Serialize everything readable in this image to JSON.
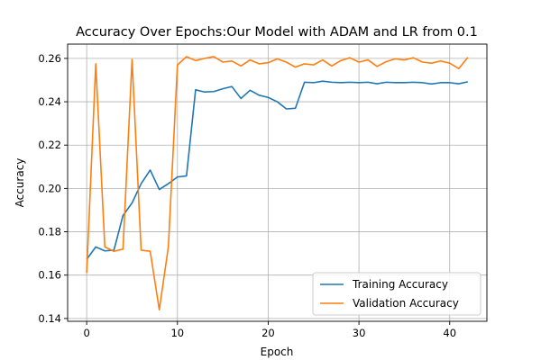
{
  "chart_data": {
    "type": "line",
    "title": "Accuracy Over Epochs:Our Model with ADAM and LR from 0.1",
    "xlabel": "Epoch",
    "ylabel": "Accuracy",
    "xlim": [
      -2.1,
      44.1
    ],
    "ylim": [
      0.1387,
      0.2666
    ],
    "xticks": [
      0,
      10,
      20,
      30,
      40
    ],
    "yticks": [
      0.14,
      0.16,
      0.18,
      0.2,
      0.22,
      0.24,
      0.26
    ],
    "ytick_labels": [
      "0.14",
      "0.16",
      "0.18",
      "0.20",
      "0.22",
      "0.24",
      "0.26"
    ],
    "grid": true,
    "legend_position": "lower-right",
    "x": [
      0,
      1,
      2,
      3,
      4,
      5,
      6,
      7,
      8,
      9,
      10,
      11,
      12,
      13,
      14,
      15,
      16,
      17,
      18,
      19,
      20,
      21,
      22,
      23,
      24,
      25,
      26,
      27,
      28,
      29,
      30,
      31,
      32,
      33,
      34,
      35,
      36,
      37,
      38,
      39,
      40,
      41,
      42
    ],
    "series": [
      {
        "name": "Training Accuracy",
        "color": "#1f77b4",
        "values": [
          0.1673,
          0.173,
          0.1712,
          0.1715,
          0.1875,
          0.1933,
          0.2022,
          0.2085,
          0.1995,
          0.2022,
          0.2053,
          0.2058,
          0.2455,
          0.2445,
          0.2447,
          0.246,
          0.247,
          0.2415,
          0.2453,
          0.243,
          0.242,
          0.24,
          0.2367,
          0.237,
          0.249,
          0.2488,
          0.2495,
          0.249,
          0.2488,
          0.249,
          0.2488,
          0.249,
          0.2483,
          0.249,
          0.2488,
          0.2488,
          0.249,
          0.2488,
          0.2482,
          0.2488,
          0.2488,
          0.2483,
          0.2492
        ]
      },
      {
        "name": "Validation Accuracy",
        "color": "#ff7f0e",
        "values": [
          0.161,
          0.2575,
          0.173,
          0.171,
          0.172,
          0.2595,
          0.1715,
          0.171,
          0.144,
          0.173,
          0.257,
          0.2608,
          0.259,
          0.26,
          0.2608,
          0.2583,
          0.2588,
          0.2565,
          0.2593,
          0.2575,
          0.258,
          0.2598,
          0.2583,
          0.256,
          0.2575,
          0.257,
          0.2593,
          0.2565,
          0.259,
          0.2603,
          0.2583,
          0.2593,
          0.2563,
          0.2585,
          0.2598,
          0.2593,
          0.2603,
          0.2583,
          0.2578,
          0.2588,
          0.2578,
          0.2553,
          0.2605
        ]
      }
    ]
  }
}
